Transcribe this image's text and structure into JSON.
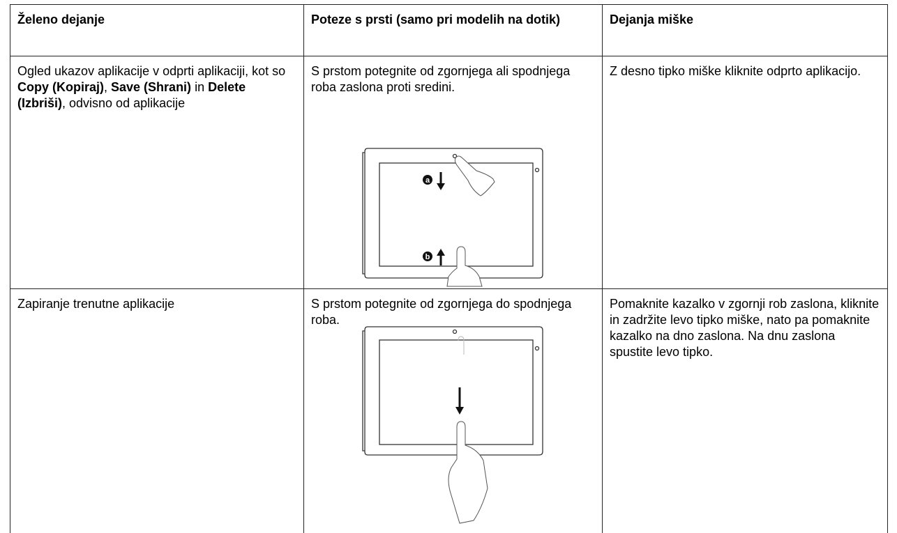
{
  "table": {
    "header": [
      "Želeno dejanje",
      "Poteze s prsti (samo pri modelih na dotik)",
      "Dejanja miške"
    ],
    "rows": [
      [
        [
          {
            "text": "Ogled ukazov aplikacije v odprti aplikaciji, kot so ",
            "bold": false
          },
          {
            "text": "Copy (Kopiraj)",
            "bold": true
          },
          {
            "text": ", ",
            "bold": false
          },
          {
            "text": "Save (Shrani)",
            "bold": true
          },
          {
            "text": " in ",
            "bold": false
          },
          {
            "text": "Delete (Izbriši)",
            "bold": true
          },
          {
            "text": ", odvisno od aplikacije",
            "bold": false
          }
        ],
        "S prstom potegnite od zgornjega ali spodnjega roba zaslona proti sredini.",
        "Z desno tipko miške kliknite odprto aplikacijo."
      ],
      [
        "Zapiranje trenutne aplikacije",
        "S prstom potegnite od zgornjega do spodnjega roba.",
        "Pomaknite kazalko v zgornji rob zaslona, kliknite in zadržite levo tipko miške, nato pa pomaknite kazalko na dno zaslona. Na dnu zaslona spustite levo tipko."
      ]
    ],
    "illustration_labels": [
      "a",
      "b"
    ]
  }
}
